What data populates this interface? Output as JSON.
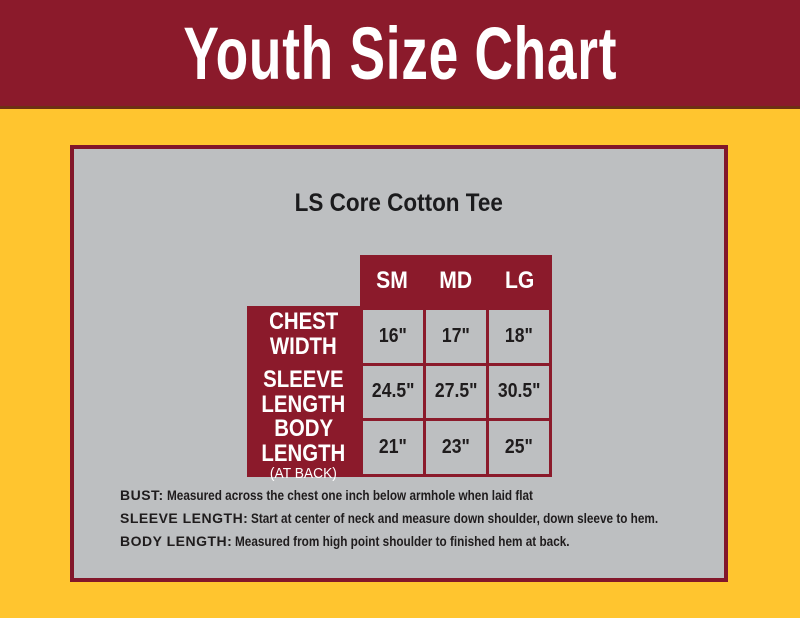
{
  "header": {
    "title": "Youth Size Chart"
  },
  "chart_data": {
    "type": "table",
    "title": "Youth Size Chart",
    "subtitle": "LS Core Cotton Tee",
    "column_headers": [
      "SM",
      "MD",
      "LG"
    ],
    "rows": [
      {
        "label_lines": [
          "CHEST",
          "WIDTH"
        ],
        "sublabel": "",
        "values": [
          "16\"",
          "17\"",
          "18\""
        ]
      },
      {
        "label_lines": [
          "SLEEVE",
          "LENGTH"
        ],
        "sublabel": "",
        "values": [
          "24.5\"",
          "27.5\"",
          "30.5\""
        ]
      },
      {
        "label_lines": [
          "BODY",
          "LENGTH"
        ],
        "sublabel": "(AT BACK)",
        "values": [
          "21\"",
          "23\"",
          "25\""
        ]
      }
    ]
  },
  "notes": [
    {
      "label": "BUST:",
      "text": "Measured across the chest one inch below armhole when laid flat"
    },
    {
      "label": "SLEEVE LENGTH:",
      "text": "Start at center of neck and measure down shoulder, down sleeve to hem."
    },
    {
      "label": "BODY LENGTH:",
      "text": "Measured from high point shoulder to finished hem at back."
    }
  ],
  "colors": {
    "maroon": "#8B1A2B",
    "gold": "#FFC52F",
    "panel_gray": "#BDBFC1",
    "text_dark": "#1F1C1D",
    "white": "#FFFFFF"
  }
}
